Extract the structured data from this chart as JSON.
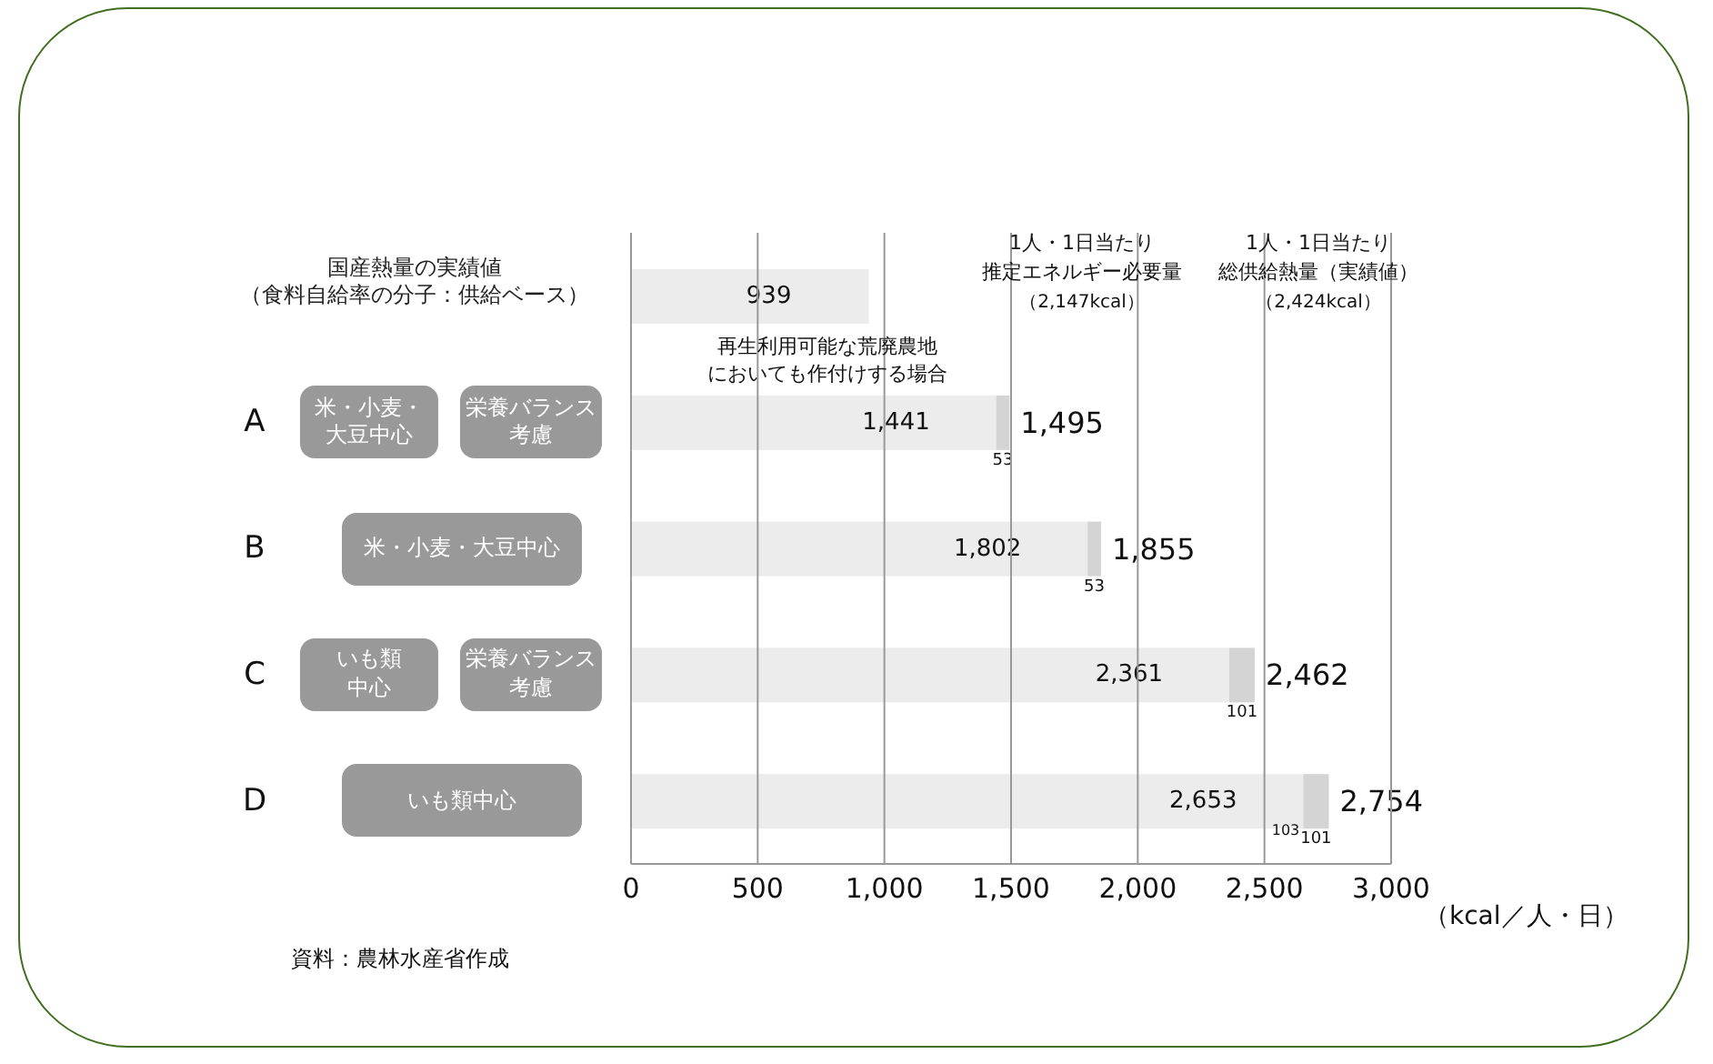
{
  "chart_data": {
    "type": "bar",
    "orientation": "horizontal",
    "stacked": true,
    "categories": [
      "国産熱量の実績値（食料自給率の分子：供給ベース）",
      "A",
      "B",
      "C",
      "D"
    ],
    "series": [
      {
        "color": "#ececec",
        "values": [
          939,
          1441,
          1802,
          2361,
          2653
        ],
        "value_labels": [
          "939",
          "1,441",
          "1,802",
          "2,361",
          "2,653"
        ]
      },
      {
        "color": "#d4d4d4",
        "values": [
          null,
          53,
          53,
          101,
          101
        ],
        "value_labels": [
          null,
          "53",
          "53",
          "101",
          "101"
        ]
      }
    ],
    "totals": [
      null,
      "1,495",
      "1,855",
      "2,462",
      "2,754"
    ],
    "xlim": [
      0,
      3000
    ],
    "xticks": [
      0,
      500,
      {
        "value": 1000,
        "label": "1,000"
      },
      {
        "value": 1500,
        "label": "1,500"
      },
      {
        "value": 2000,
        "label": "2,000"
      },
      {
        "value": 2500,
        "label": "2,500"
      },
      {
        "value": 3000,
        "label": "3,000"
      }
    ],
    "xlabel": "（kcal／人・日）",
    "grid": "x",
    "annotations": [
      "再生利用可能な荒廃農地",
      "においても作付けする場合",
      "1人・1日当たり",
      "推定エネルギー必要量",
      "（2,147kcal）",
      "1人・1日当たり",
      "総供給熱量（実績値）",
      "（2,424kcal）",
      "103",
      "資料：農林水産省作成",
      "米・小麦・",
      "大豆中心",
      "栄養バランス",
      "考慮",
      "米・小麦・大豆中心",
      "いも類",
      "中心",
      "栄養バランス",
      "考慮",
      "いも類中心"
    ]
  }
}
